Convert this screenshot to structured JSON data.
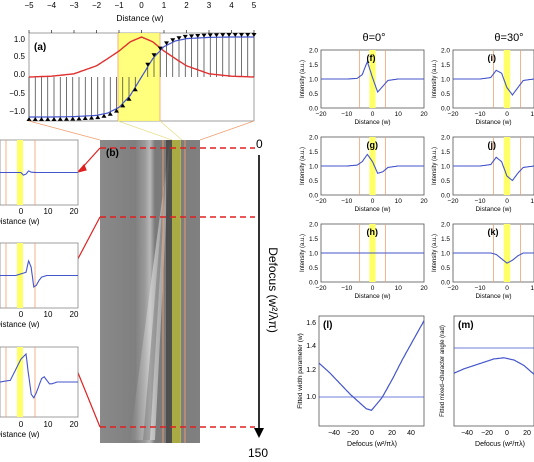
{
  "figure": {
    "top_axis": {
      "label": "Distance (w)",
      "ticks": [
        "−5",
        "−4",
        "−3",
        "−2",
        "−1",
        "0",
        "1",
        "2",
        "3",
        "4",
        "5"
      ]
    },
    "colors": {
      "red": "#e03030",
      "blue": "#4455cc",
      "yellow": "#ffff66",
      "orange": "#f0a070",
      "dashed": "#e02020"
    },
    "panels": {
      "a": {
        "letter": "(a)",
        "yticks": [
          "1.0",
          "0.5",
          "0.0",
          "−0.5",
          "−1.0"
        ]
      },
      "b": {
        "letter": "(b)",
        "top_value": "0",
        "bottom_value": "150",
        "axis_label": "Defocus (w²/λπ)"
      },
      "left_stack": {
        "xticks": [
          "0",
          "10",
          "20"
        ],
        "xlabel": "Distance (w)"
      },
      "col_headers": {
        "theta0": "θ=0°",
        "theta30": "θ=30°"
      },
      "f": {
        "letter": "(f)"
      },
      "g": {
        "letter": "(g)"
      },
      "h": {
        "letter": "(h)"
      },
      "i": {
        "letter": "(i)"
      },
      "j": {
        "letter": "(j)"
      },
      "k": {
        "letter": "(k)"
      },
      "l": {
        "letter": "(l)",
        "ylabel": "Fitted width parameter (w)",
        "xlabel": "Defocus (w²/πλ)",
        "yticks": [
          "1.6",
          "1.4",
          "1.2",
          "1.0"
        ],
        "xticks": [
          "−40",
          "−20",
          "0",
          "20",
          "40"
        ]
      },
      "m": {
        "letter": "(m)",
        "ylabel": "Fitted mixed–character angle (rad)",
        "xlabel": "Defocus (w²/πλ)",
        "xticks": [
          "−40",
          "−20",
          "0",
          "20"
        ]
      },
      "intensity_panel": {
        "ylabel": "Intensity (a.u.)",
        "xlabel": "Distance (w)",
        "yticks": [
          "2.0",
          "1.5",
          "1.0",
          "0.5",
          "0.0"
        ],
        "xticks": [
          "−20",
          "−10",
          "0",
          "10",
          "20"
        ],
        "xticks_right": [
          "−20",
          "−10",
          "0",
          "10"
        ]
      }
    }
  },
  "chart_data": [
    {
      "id": "a",
      "type": "line",
      "title": "",
      "xlabel": "Distance (w)",
      "ylabel": "",
      "xlim": [
        -5,
        5
      ],
      "ylim": [
        -1.1,
        1.1
      ],
      "series": [
        {
          "x": [
            -5,
            -4,
            -3,
            -2,
            -1.5,
            -1,
            -0.5,
            0,
            0.5,
            1,
            1.5,
            2,
            3,
            4,
            5
          ],
          "values": [
            -1.0,
            -1.0,
            -0.99,
            -0.96,
            -0.9,
            -0.76,
            -0.46,
            0.0,
            0.46,
            0.76,
            0.9,
            0.96,
            0.99,
            1.0,
            1.0
          ]
        },
        {
          "x": [
            -5,
            -4,
            -3,
            -2,
            -1.5,
            -1,
            -0.5,
            0,
            0.5,
            1,
            1.5,
            2,
            3,
            4,
            5
          ],
          "values": [
            0.0,
            0.02,
            0.08,
            0.28,
            0.46,
            0.65,
            0.88,
            1.0,
            0.88,
            0.65,
            0.46,
            0.28,
            0.08,
            0.02,
            0.0
          ]
        }
      ]
    },
    {
      "id": "f",
      "type": "line",
      "xlim": [
        -20,
        20
      ],
      "ylim": [
        0,
        2
      ],
      "series": [
        {
          "x": [
            -20,
            -10,
            -6,
            -4,
            -2,
            0,
            2,
            4,
            6,
            10,
            20
          ],
          "values": [
            1.0,
            1.0,
            1.02,
            1.15,
            1.6,
            1.05,
            0.55,
            0.75,
            0.95,
            1.0,
            1.0
          ]
        }
      ]
    },
    {
      "id": "g",
      "type": "line",
      "xlim": [
        -20,
        20
      ],
      "ylim": [
        0,
        2
      ],
      "series": [
        {
          "x": [
            -20,
            -10,
            -6,
            -4,
            -2,
            0,
            2,
            4,
            6,
            10,
            20
          ],
          "values": [
            1.0,
            1.0,
            1.03,
            1.15,
            1.4,
            1.15,
            0.75,
            0.8,
            0.95,
            1.0,
            1.0
          ]
        }
      ]
    },
    {
      "id": "h",
      "type": "line",
      "xlim": [
        -20,
        20
      ],
      "ylim": [
        0,
        2
      ],
      "series": [
        {
          "x": [
            -20,
            20
          ],
          "values": [
            1.0,
            1.0
          ]
        }
      ]
    },
    {
      "id": "i",
      "type": "line",
      "xlim": [
        -20,
        10
      ],
      "ylim": [
        0,
        2
      ],
      "series": [
        {
          "x": [
            -20,
            -10,
            -6,
            -4,
            -2,
            0,
            2,
            4,
            6,
            10
          ],
          "values": [
            1.0,
            1.0,
            1.05,
            1.3,
            1.2,
            0.7,
            0.45,
            0.7,
            0.95,
            1.0
          ]
        }
      ]
    },
    {
      "id": "j",
      "type": "line",
      "xlim": [
        -20,
        10
      ],
      "ylim": [
        0,
        2
      ],
      "series": [
        {
          "x": [
            -20,
            -10,
            -6,
            -4,
            -2,
            0,
            2,
            4,
            6,
            10
          ],
          "values": [
            1.0,
            1.0,
            1.05,
            1.3,
            1.15,
            0.65,
            0.5,
            0.75,
            0.95,
            1.0
          ]
        }
      ]
    },
    {
      "id": "k",
      "type": "line",
      "xlim": [
        -20,
        10
      ],
      "ylim": [
        0,
        2
      ],
      "series": [
        {
          "x": [
            -20,
            -10,
            -6,
            -4,
            -2,
            0,
            2,
            4,
            6,
            10
          ],
          "values": [
            1.0,
            1.0,
            1.0,
            0.95,
            0.8,
            0.65,
            0.75,
            0.9,
            1.0,
            1.0
          ]
        }
      ]
    },
    {
      "id": "l",
      "type": "line",
      "xlim": [
        -50,
        50
      ],
      "ylim": [
        0.9,
        1.6
      ],
      "series": [
        {
          "x": [
            -50,
            -40,
            -30,
            -20,
            -10,
            -5,
            0,
            5,
            10,
            20,
            30,
            40,
            50
          ],
          "values": [
            1.3,
            1.24,
            1.17,
            1.1,
            1.04,
            1.01,
            1.0,
            1.04,
            1.08,
            1.2,
            1.33,
            1.45,
            1.57
          ]
        }
      ]
    },
    {
      "id": "m",
      "type": "line",
      "xlim": [
        -50,
        30
      ],
      "ylim": [
        0,
        1
      ],
      "series": [
        {
          "x": [
            -50,
            -40,
            -30,
            -20,
            -10,
            0,
            10,
            20,
            30
          ],
          "values": [
            0.48,
            0.52,
            0.55,
            0.58,
            0.61,
            0.62,
            0.6,
            0.55,
            0.47
          ]
        }
      ]
    },
    {
      "id": "left1",
      "type": "line",
      "xlim": [
        -10,
        20
      ],
      "ylim": [
        0,
        2
      ],
      "series": [
        {
          "x": [
            -10,
            -2,
            -1,
            0,
            1,
            2,
            4,
            20
          ],
          "values": [
            1.0,
            1.0,
            0.92,
            0.95,
            1.05,
            1.01,
            1.0,
            1.0
          ]
        }
      ]
    },
    {
      "id": "left2",
      "type": "line",
      "xlim": [
        -10,
        20
      ],
      "ylim": [
        0,
        2
      ],
      "series": [
        {
          "x": [
            -10,
            -4,
            -2,
            0,
            1,
            2,
            3,
            4,
            5,
            6,
            8,
            20
          ],
          "values": [
            1.0,
            1.0,
            1.05,
            1.1,
            1.45,
            1.25,
            0.65,
            0.7,
            0.85,
            0.95,
            1.0,
            1.0
          ]
        }
      ]
    },
    {
      "id": "left3",
      "type": "line",
      "xlim": [
        -10,
        20
      ],
      "ylim": [
        0,
        2
      ],
      "series": [
        {
          "x": [
            -10,
            -6,
            -4,
            -2,
            0,
            1,
            2,
            3,
            4,
            5,
            6,
            7,
            8,
            9,
            10,
            12,
            14,
            16,
            20
          ],
          "values": [
            1.0,
            1.05,
            1.35,
            1.65,
            1.8,
            1.2,
            0.65,
            0.55,
            0.7,
            0.9,
            1.1,
            1.15,
            1.05,
            0.95,
            0.95,
            1.0,
            1.0,
            1.0,
            1.0
          ]
        }
      ]
    }
  ]
}
